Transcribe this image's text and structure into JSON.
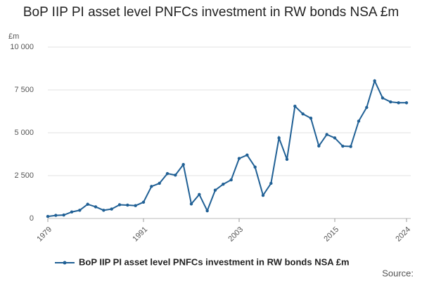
{
  "chart_data": {
    "type": "line",
    "title": "BoP IIP PI asset level PNFCs investment in RW bonds NSA £m",
    "y_unit": "£m",
    "source": "Source:",
    "x": [
      1979,
      1980,
      1981,
      1982,
      1983,
      1984,
      1985,
      1986,
      1987,
      1988,
      1989,
      1990,
      1991,
      1992,
      1993,
      1994,
      1995,
      1996,
      1997,
      1998,
      1999,
      2000,
      2001,
      2002,
      2003,
      2004,
      2005,
      2006,
      2007,
      2008,
      2009,
      2010,
      2011,
      2012,
      2013,
      2014,
      2015,
      2016,
      2017,
      2018,
      2019,
      2020,
      2021,
      2022,
      2023,
      2024
    ],
    "series": [
      {
        "name": "BoP IIP PI asset level PNFCs investment in RW bonds NSA £m",
        "color": "#206095",
        "values": [
          120,
          180,
          200,
          380,
          480,
          830,
          680,
          480,
          550,
          800,
          780,
          750,
          950,
          1870,
          2050,
          2620,
          2530,
          3150,
          850,
          1400,
          450,
          1650,
          2000,
          2250,
          3500,
          3700,
          3000,
          1350,
          2050,
          4700,
          3450,
          6550,
          6100,
          5850,
          4230,
          4900,
          4700,
          4220,
          4200,
          5680,
          6480,
          8030,
          7030,
          6800,
          6750,
          6750
        ]
      }
    ],
    "xlim": [
      1979,
      2024
    ],
    "xticks": [
      1979,
      1991,
      2003,
      2015,
      2024
    ],
    "ylim": [
      0,
      10000
    ],
    "yticks": [
      0,
      {
        "value": 2500,
        "label": "2 500"
      },
      {
        "value": 5000,
        "label": "5 000"
      },
      {
        "value": 7500,
        "label": "7 500"
      },
      {
        "value": 10000,
        "label": "10 000"
      }
    ],
    "grid": true,
    "legend": "bottom"
  }
}
